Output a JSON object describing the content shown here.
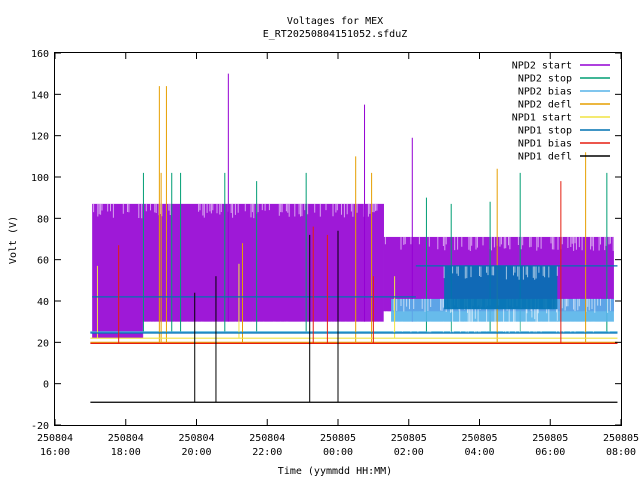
{
  "chart_data": {
    "type": "line",
    "title": "Voltages for MEX",
    "subtitle": "E_RT20250804151052.sfduZ",
    "xlabel": "Time (yymmdd HH:MM)",
    "ylabel": "Volt (V)",
    "xlim_hours": [
      16,
      32
    ],
    "ylim": [
      -20,
      160
    ],
    "yticks": [
      -20,
      0,
      20,
      40,
      60,
      80,
      100,
      120,
      140,
      160
    ],
    "xticks": [
      {
        "hour": 16,
        "date": "250804",
        "time": "16:00"
      },
      {
        "hour": 18,
        "date": "250804",
        "time": "18:00"
      },
      {
        "hour": 20,
        "date": "250804",
        "time": "20:00"
      },
      {
        "hour": 22,
        "date": "250804",
        "time": "22:00"
      },
      {
        "hour": 24,
        "date": "250805",
        "time": "00:00"
      },
      {
        "hour": 26,
        "date": "250805",
        "time": "02:00"
      },
      {
        "hour": 28,
        "date": "250805",
        "time": "04:00"
      },
      {
        "hour": 30,
        "date": "250805",
        "time": "06:00"
      },
      {
        "hour": 32,
        "date": "250805",
        "time": "08:00"
      }
    ],
    "grid": false,
    "legend_position": "top-right",
    "data_start_hour": 17.0,
    "series": [
      {
        "name": "NPD2 start",
        "color": "#9400d3",
        "bands": [
          {
            "from": 17.05,
            "to": 18.5,
            "low": 22,
            "high": 87
          },
          {
            "from": 18.5,
            "to": 25.3,
            "low": 30,
            "high": 87
          },
          {
            "from": 25.3,
            "to": 31.8,
            "low": 35,
            "high": 71
          }
        ],
        "spikes": [
          {
            "at": 20.9,
            "value": 150
          },
          {
            "at": 24.75,
            "value": 135
          },
          {
            "at": 26.1,
            "value": 119
          }
        ]
      },
      {
        "name": "NPD2 stop",
        "color": "#009e73",
        "base": 25,
        "spikes": [
          {
            "at": 18.5,
            "value": 102
          },
          {
            "at": 19.3,
            "value": 102
          },
          {
            "at": 19.55,
            "value": 102
          },
          {
            "at": 20.8,
            "value": 102
          },
          {
            "at": 21.7,
            "value": 98
          },
          {
            "at": 23.1,
            "value": 102
          },
          {
            "at": 26.5,
            "value": 90
          },
          {
            "at": 27.2,
            "value": 87
          },
          {
            "at": 28.3,
            "value": 88
          },
          {
            "at": 29.15,
            "value": 102
          },
          {
            "at": 31.6,
            "value": 102
          }
        ]
      },
      {
        "name": "NPD2 bias",
        "color": "#56b4e9",
        "base": 25,
        "bands": [
          {
            "from": 25.5,
            "to": 31.8,
            "low": 30,
            "high": 41
          }
        ]
      },
      {
        "name": "NPD2 defl",
        "color": "#e69f00",
        "base": 20,
        "spikes": [
          {
            "at": 18.95,
            "value": 144
          },
          {
            "at": 19.15,
            "value": 144
          },
          {
            "at": 19.0,
            "value": 102
          },
          {
            "at": 21.3,
            "value": 68
          },
          {
            "at": 24.5,
            "value": 110
          },
          {
            "at": 24.95,
            "value": 102
          },
          {
            "at": 28.5,
            "value": 104
          },
          {
            "at": 31.0,
            "value": 112
          }
        ]
      },
      {
        "name": "NPD1 start",
        "color": "#f0e442",
        "base": 22,
        "spikes": [
          {
            "at": 17.2,
            "value": 57
          },
          {
            "at": 21.2,
            "value": 58
          },
          {
            "at": 25.6,
            "value": 52
          }
        ]
      },
      {
        "name": "NPD1 stop",
        "color": "#0072b2",
        "base": 24.5,
        "bands": [
          {
            "from": 27.0,
            "to": 30.2,
            "low": 36,
            "high": 57
          }
        ],
        "steps": [
          {
            "from": 17.05,
            "to": 26.2,
            "value": 42
          },
          {
            "from": 26.2,
            "to": 31.9,
            "value": 57
          }
        ]
      },
      {
        "name": "NPD1 bias",
        "color": "#e51e10",
        "base": 19.5,
        "spikes": [
          {
            "at": 17.8,
            "value": 67
          },
          {
            "at": 23.3,
            "value": 76
          },
          {
            "at": 23.7,
            "value": 72
          },
          {
            "at": 25.0,
            "value": 52
          },
          {
            "at": 30.3,
            "value": 98
          }
        ]
      },
      {
        "name": "NPD1 defl",
        "color": "#000000",
        "base": -9,
        "spikes": [
          {
            "at": 19.95,
            "value": 44
          },
          {
            "at": 20.55,
            "value": 52
          },
          {
            "at": 23.2,
            "value": 72
          },
          {
            "at": 24.0,
            "value": 74
          }
        ]
      }
    ]
  }
}
